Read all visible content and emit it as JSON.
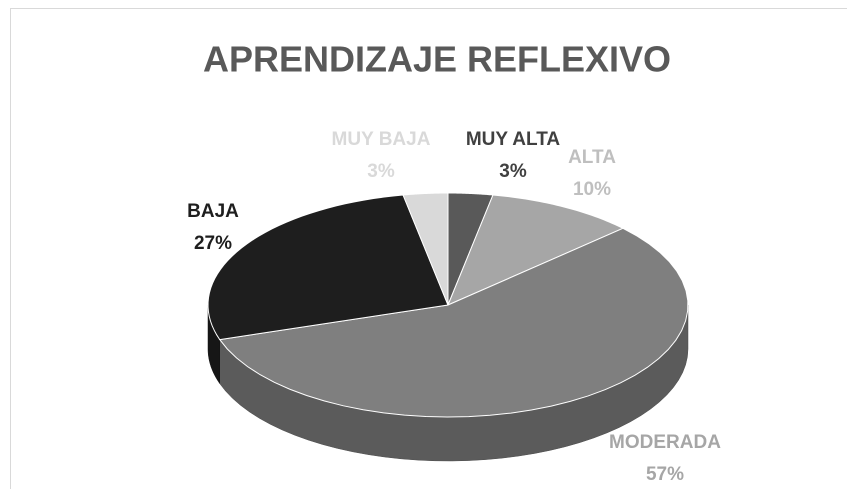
{
  "chart_data": {
    "type": "pie",
    "title": "APRENDIZAJE REFLEXIVO",
    "categories": [
      "MUY ALTA",
      "ALTA",
      "MODERADA",
      "BAJA",
      "MUY BAJA"
    ],
    "values": [
      3,
      10,
      57,
      27,
      3
    ],
    "value_labels": [
      "3%",
      "10%",
      "57%",
      "27%",
      "3%"
    ],
    "colors": [
      "#595959",
      "#a6a6a6",
      "#7f7f7f",
      "#1e1e1e",
      "#d9d9d9"
    ]
  }
}
